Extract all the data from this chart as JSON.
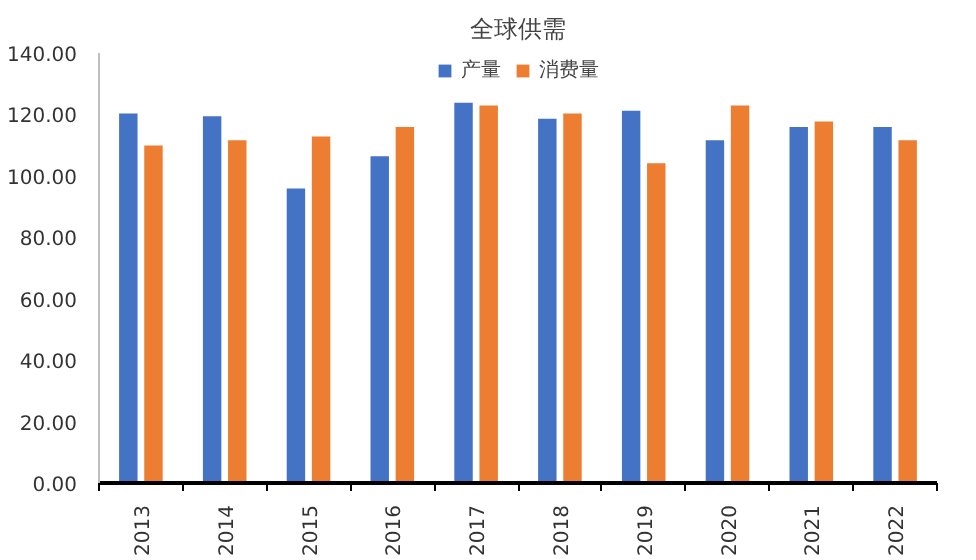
{
  "chart_data": {
    "type": "bar",
    "title": "全球供需",
    "categories": [
      "2013",
      "2014",
      "2015",
      "2016",
      "2017",
      "2018",
      "2019",
      "2020",
      "2021",
      "2022"
    ],
    "series": [
      {
        "name": "产量",
        "color": "#4472c4",
        "values": [
          120.3,
          119.4,
          95.9,
          106.4,
          123.8,
          118.6,
          121.2,
          111.6,
          115.9,
          115.9
        ]
      },
      {
        "name": "消费量",
        "color": "#ed7d31",
        "values": [
          109.9,
          111.6,
          112.8,
          115.9,
          122.9,
          120.3,
          104.1,
          122.9,
          117.7,
          111.6
        ]
      }
    ],
    "ylim": [
      0,
      140
    ],
    "yticks": [
      {
        "value": 0,
        "label": "0.00"
      },
      {
        "value": 20,
        "label": "20.00"
      },
      {
        "value": 40,
        "label": "40.00"
      },
      {
        "value": 60,
        "label": "60.00"
      },
      {
        "value": 80,
        "label": "80.00"
      },
      {
        "value": 100,
        "label": "100.00"
      },
      {
        "value": 120,
        "label": "120.00"
      },
      {
        "value": 140,
        "label": "140.00"
      }
    ],
    "grid": false,
    "legend": "top"
  }
}
